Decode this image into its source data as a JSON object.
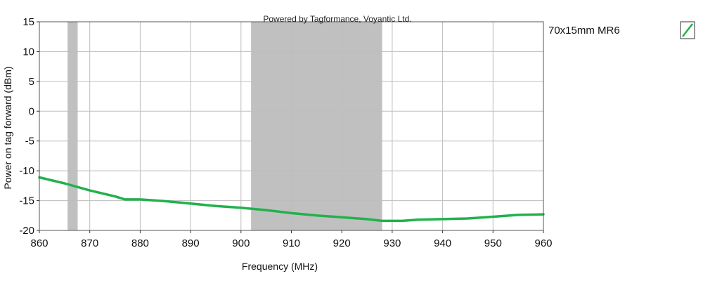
{
  "chart_data": {
    "type": "line",
    "title": "Powered by Tagformance, Voyantic Ltd.",
    "xlabel": "Frequency (MHz)",
    "ylabel": "Power on tag forward (dBm)",
    "xlim": [
      860,
      960
    ],
    "ylim": [
      -20,
      15
    ],
    "x_ticks": [
      860,
      870,
      880,
      890,
      900,
      910,
      920,
      930,
      940,
      950,
      960
    ],
    "y_ticks": [
      15,
      10,
      5,
      0,
      -5,
      -10,
      -15,
      -20
    ],
    "grid": true,
    "legend_position": "right",
    "shaded_bands": [
      {
        "x_from": 865.6,
        "x_to": 867.6,
        "color": "#c0c0c0"
      },
      {
        "x_from": 902,
        "x_to": 928,
        "color": "#c0c0c0"
      }
    ],
    "series": [
      {
        "name": "70x15mm MR6",
        "color": "#22b14c",
        "x": [
          860,
          865,
          870,
          875,
          877,
          880,
          885,
          890,
          895,
          900,
          905,
          910,
          915,
          920,
          925,
          928,
          932,
          935,
          940,
          945,
          950,
          955,
          960
        ],
        "y": [
          -11.1,
          -12.1,
          -13.3,
          -14.3,
          -14.8,
          -14.8,
          -15.1,
          -15.5,
          -15.9,
          -16.2,
          -16.6,
          -17.1,
          -17.5,
          -17.8,
          -18.1,
          -18.4,
          -18.4,
          -18.2,
          -18.1,
          -18.0,
          -17.7,
          -17.4,
          -17.3
        ]
      }
    ]
  }
}
